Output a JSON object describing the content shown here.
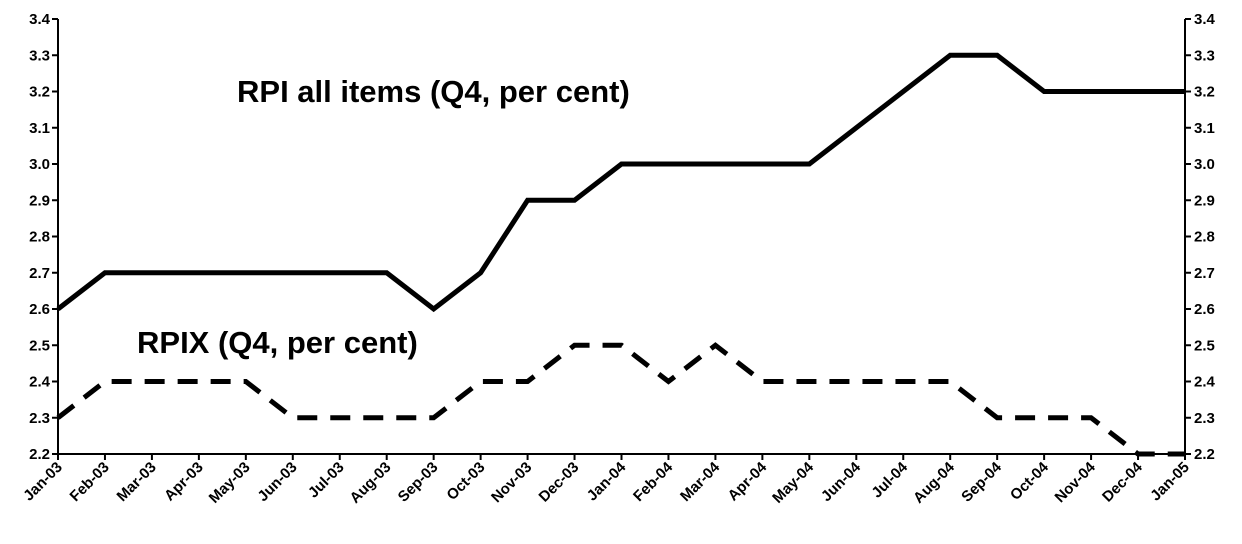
{
  "chart_data": {
    "type": "line",
    "title": "",
    "xlabel": "",
    "ylabel": "",
    "ylim": [
      2.2,
      3.4
    ],
    "y_ticks": [
      "2.2",
      "2.3",
      "2.4",
      "2.5",
      "2.6",
      "2.7",
      "2.8",
      "2.9",
      "3.0",
      "3.1",
      "3.2",
      "3.3",
      "3.4"
    ],
    "categories": [
      "Jan-03",
      "Feb-03",
      "Mar-03",
      "Apr-03",
      "May-03",
      "Jun-03",
      "Jul-03",
      "Aug-03",
      "Sep-03",
      "Oct-03",
      "Nov-03",
      "Dec-03",
      "Jan-04",
      "Feb-04",
      "Mar-04",
      "Apr-04",
      "May-04",
      "Jun-04",
      "Jul-04",
      "Aug-04",
      "Sep-04",
      "Oct-04",
      "Nov-04",
      "Dec-04",
      "Jan-05"
    ],
    "grid": false,
    "legend": "none",
    "axes": "left and right y-axes with identical scale",
    "series": [
      {
        "style": "solid",
        "color": "#000000",
        "values": [
          2.6,
          2.7,
          2.7,
          2.7,
          2.7,
          2.7,
          2.7,
          2.7,
          2.6,
          2.7,
          2.9,
          2.9,
          3.0,
          3.0,
          3.0,
          3.0,
          3.0,
          3.1,
          3.2,
          3.3,
          3.3,
          3.2,
          3.2,
          3.2,
          3.2
        ]
      },
      {
        "style": "dashed",
        "color": "#000000",
        "values": [
          2.3,
          2.4,
          2.4,
          2.4,
          2.4,
          2.3,
          2.3,
          2.3,
          2.3,
          2.4,
          2.4,
          2.5,
          2.5,
          2.4,
          2.5,
          2.4,
          2.4,
          2.4,
          2.4,
          2.4,
          2.3,
          2.3,
          2.3,
          2.2,
          2.2
        ]
      }
    ],
    "annotations": [
      {
        "text": "RPI all items (Q4, per cent)",
        "series": 0
      },
      {
        "text": "RPIX (Q4, per cent)",
        "series": 1
      }
    ]
  }
}
